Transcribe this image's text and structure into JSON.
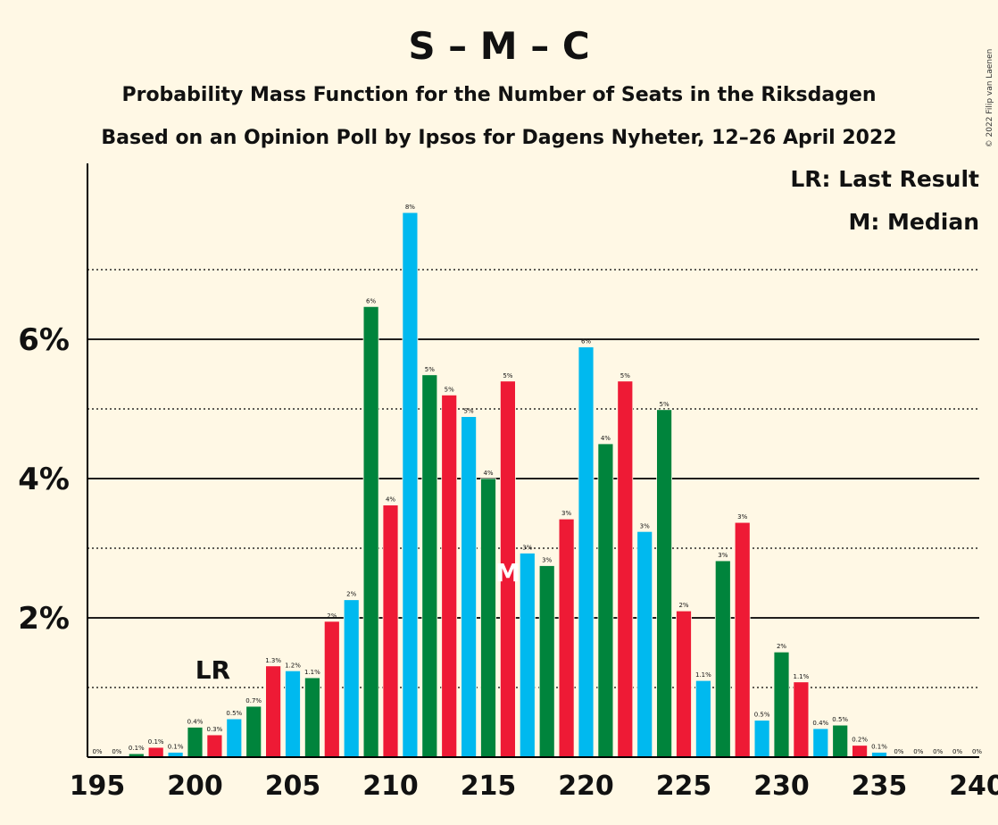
{
  "header": {
    "title": "S – M – C",
    "subtitle1": "Probability Mass Function for the Number of Seats in the Riksdagen",
    "subtitle2": "Based on an Opinion Poll by Ipsos for Dagens Nyheter, 12–26 April 2022"
  },
  "legend": {
    "lr": "LR: Last Result",
    "median": "M: Median"
  },
  "markers": {
    "lr_label": "LR",
    "lr_seat": 201,
    "median_label": "M",
    "median_seat": 216
  },
  "copyright": "© 2022 Filip van Laenen",
  "colors": {
    "background": "#FFF8E5",
    "party_colors": [
      "#EE1A35",
      "#00B9EF",
      "#00843C"
    ]
  },
  "chart_data": {
    "type": "bar",
    "title": "S – M – C",
    "xlabel": "",
    "ylabel": "",
    "xlim": [
      195,
      240
    ],
    "ylim": [
      0,
      8.5
    ],
    "grid": true,
    "x_ticks": [
      195,
      200,
      205,
      210,
      215,
      220,
      225,
      230,
      235,
      240
    ],
    "x_tick_labels": [
      "195",
      "200",
      "205",
      "210",
      "215",
      "220",
      "225",
      "230",
      "235",
      "240"
    ],
    "y_ticks": [
      2,
      4,
      6
    ],
    "y_tick_labels": [
      "2%",
      "4%",
      "6%"
    ],
    "bars": [
      {
        "seat": 195,
        "value": 0,
        "label": "0%",
        "color": "#00B9EF"
      },
      {
        "seat": 196,
        "value": 0,
        "label": "0%",
        "color": "#EE1A35"
      },
      {
        "seat": 197,
        "value": 0.05,
        "label": "0.1%",
        "color": "#00843C"
      },
      {
        "seat": 198,
        "value": 0.14,
        "label": "0.1%",
        "color": "#EE1A35"
      },
      {
        "seat": 199,
        "value": 0.07,
        "label": "0.1%",
        "color": "#00B9EF"
      },
      {
        "seat": 200,
        "value": 0.43,
        "label": "0.4%",
        "color": "#00843C"
      },
      {
        "seat": 201,
        "value": 0.32,
        "label": "0.3%",
        "color": "#EE1A35"
      },
      {
        "seat": 202,
        "value": 0.55,
        "label": "0.5%",
        "color": "#00B9EF"
      },
      {
        "seat": 203,
        "value": 0.73,
        "label": "0.7%",
        "color": "#00843C"
      },
      {
        "seat": 204,
        "value": 1.31,
        "label": "1.3%",
        "color": "#EE1A35"
      },
      {
        "seat": 205,
        "value": 1.24,
        "label": "1.2%",
        "color": "#00B9EF"
      },
      {
        "seat": 206,
        "value": 1.14,
        "label": "1.1%",
        "color": "#00843C"
      },
      {
        "seat": 207,
        "value": 1.95,
        "label": "2%",
        "color": "#EE1A35"
      },
      {
        "seat": 208,
        "value": 2.26,
        "label": "2%",
        "color": "#00B9EF"
      },
      {
        "seat": 209,
        "value": 6.47,
        "label": "6%",
        "color": "#00843C"
      },
      {
        "seat": 210,
        "value": 3.62,
        "label": "4%",
        "color": "#EE1A35"
      },
      {
        "seat": 211,
        "value": 7.82,
        "label": "8%",
        "color": "#00B9EF"
      },
      {
        "seat": 212,
        "value": 5.49,
        "label": "5%",
        "color": "#00843C"
      },
      {
        "seat": 213,
        "value": 5.2,
        "label": "5%",
        "color": "#EE1A35"
      },
      {
        "seat": 214,
        "value": 4.89,
        "label": "5%",
        "color": "#00B9EF"
      },
      {
        "seat": 215,
        "value": 4.0,
        "label": "4%",
        "color": "#00843C"
      },
      {
        "seat": 216,
        "value": 5.4,
        "label": "5%",
        "color": "#EE1A35"
      },
      {
        "seat": 217,
        "value": 2.93,
        "label": "3%",
        "color": "#00B9EF"
      },
      {
        "seat": 218,
        "value": 2.75,
        "label": "3%",
        "color": "#00843C"
      },
      {
        "seat": 219,
        "value": 3.42,
        "label": "3%",
        "color": "#EE1A35"
      },
      {
        "seat": 220,
        "value": 5.89,
        "label": "6%",
        "color": "#00B9EF"
      },
      {
        "seat": 221,
        "value": 4.5,
        "label": "4%",
        "color": "#00843C"
      },
      {
        "seat": 222,
        "value": 5.4,
        "label": "5%",
        "color": "#EE1A35"
      },
      {
        "seat": 223,
        "value": 3.24,
        "label": "3%",
        "color": "#00B9EF"
      },
      {
        "seat": 224,
        "value": 4.99,
        "label": "5%",
        "color": "#00843C"
      },
      {
        "seat": 225,
        "value": 2.1,
        "label": "2%",
        "color": "#EE1A35"
      },
      {
        "seat": 226,
        "value": 1.1,
        "label": "1.1%",
        "color": "#00B9EF"
      },
      {
        "seat": 227,
        "value": 2.82,
        "label": "3%",
        "color": "#00843C"
      },
      {
        "seat": 228,
        "value": 3.37,
        "label": "3%",
        "color": "#EE1A35"
      },
      {
        "seat": 229,
        "value": 0.53,
        "label": "0.5%",
        "color": "#00B9EF"
      },
      {
        "seat": 230,
        "value": 1.51,
        "label": "2%",
        "color": "#00843C"
      },
      {
        "seat": 231,
        "value": 1.08,
        "label": "1.1%",
        "color": "#EE1A35"
      },
      {
        "seat": 232,
        "value": 0.41,
        "label": "0.4%",
        "color": "#00B9EF"
      },
      {
        "seat": 233,
        "value": 0.46,
        "label": "0.5%",
        "color": "#00843C"
      },
      {
        "seat": 234,
        "value": 0.17,
        "label": "0.2%",
        "color": "#EE1A35"
      },
      {
        "seat": 235,
        "value": 0.07,
        "label": "0.1%",
        "color": "#00B9EF"
      },
      {
        "seat": 236,
        "value": 0,
        "label": "0%",
        "color": "#00843C"
      },
      {
        "seat": 237,
        "value": 0,
        "label": "0%",
        "color": "#EE1A35"
      },
      {
        "seat": 238,
        "value": 0,
        "label": "0%",
        "color": "#00B9EF"
      },
      {
        "seat": 239,
        "value": 0,
        "label": "0%",
        "color": "#00843C"
      },
      {
        "seat": 240,
        "value": 0,
        "label": "0%",
        "color": "#EE1A35"
      }
    ]
  }
}
